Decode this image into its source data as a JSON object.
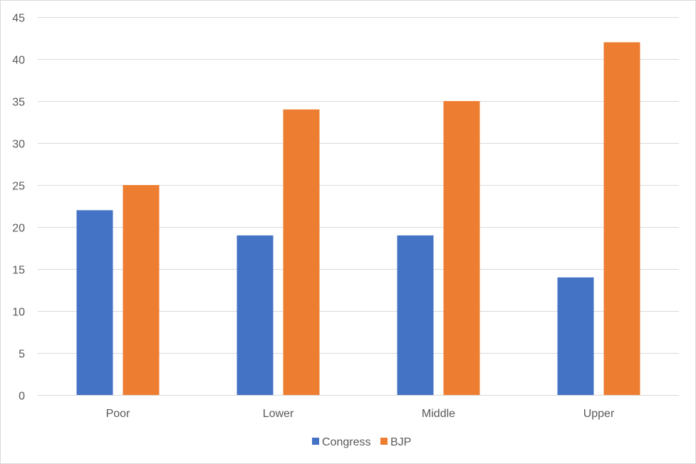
{
  "chart_data": {
    "type": "bar",
    "title": "",
    "xlabel": "",
    "ylabel": "",
    "categories": [
      "Poor",
      "Lower",
      "Middle",
      "Upper"
    ],
    "series": [
      {
        "name": "Congress",
        "values": [
          22,
          19,
          19,
          14
        ],
        "color": "#4472C4"
      },
      {
        "name": "BJP",
        "values": [
          25,
          34,
          35,
          42
        ],
        "color": "#ED7D31"
      }
    ],
    "ylim": [
      0,
      45
    ],
    "yticks": [
      0,
      5,
      10,
      15,
      20,
      25,
      30,
      35,
      40,
      45
    ],
    "grid": true,
    "legend_position": "bottom"
  }
}
